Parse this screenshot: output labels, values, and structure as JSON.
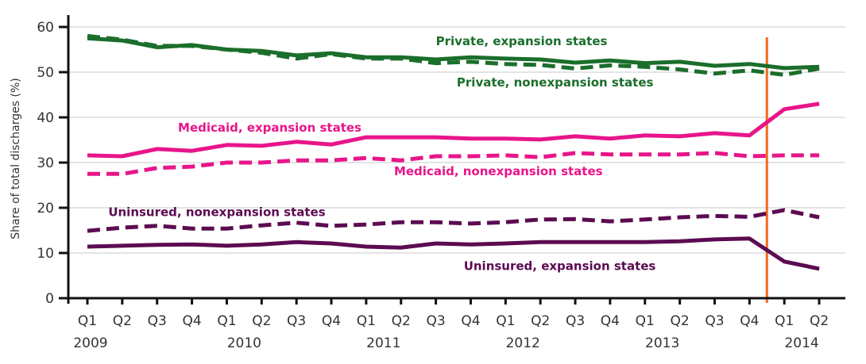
{
  "chart_data": {
    "type": "line",
    "title": "",
    "xlabel": "",
    "ylabel": "Share of total discharges (%)",
    "ylim": [
      0,
      60
    ],
    "yticks": [
      0,
      10,
      20,
      30,
      40,
      50,
      60
    ],
    "grid": "horizontal",
    "categories": [
      "Q1",
      "Q2",
      "Q3",
      "Q4",
      "Q1",
      "Q2",
      "Q3",
      "Q4",
      "Q1",
      "Q2",
      "Q3",
      "Q4",
      "Q1",
      "Q2",
      "Q3",
      "Q4",
      "Q1",
      "Q2",
      "Q3",
      "Q4",
      "Q1",
      "Q2"
    ],
    "year_labels": [
      {
        "label": "2009",
        "at_index": 0
      },
      {
        "label": "2010",
        "at_index": 4.5
      },
      {
        "label": "2011",
        "at_index": 8.5
      },
      {
        "label": "2012",
        "at_index": 12.5
      },
      {
        "label": "2013",
        "at_index": 16.5
      },
      {
        "label": "2014",
        "at_index": 20.5
      }
    ],
    "annotation": {
      "type": "vertical-line",
      "between_index": [
        19,
        20
      ],
      "position": 19.5,
      "color": "#f26b1d"
    },
    "series": [
      {
        "name": "Private, expansion states",
        "color": "#1b6e2b",
        "dash": false,
        "values": [
          57.5,
          57.0,
          55.5,
          56.0,
          55.0,
          54.7,
          53.7,
          54.2,
          53.3,
          53.3,
          52.8,
          53.3,
          53.0,
          52.8,
          52.1,
          52.6,
          52.0,
          52.3,
          51.4,
          51.8,
          50.9,
          51.2
        ],
        "label_anchor": [
          10.0,
          56.0
        ]
      },
      {
        "name": "Private, nonexpansion states",
        "color": "#1b6e2b",
        "dash": true,
        "values": [
          58.0,
          57.2,
          55.8,
          55.8,
          55.0,
          54.3,
          53.0,
          54.0,
          53.0,
          53.0,
          52.0,
          52.3,
          51.8,
          51.6,
          50.8,
          51.5,
          51.2,
          50.6,
          49.7,
          50.4,
          49.4,
          50.8
        ],
        "label_anchor": [
          10.6,
          46.8
        ]
      },
      {
        "name": "Medicaid, expansion states",
        "color": "#e8158a",
        "dash": false,
        "values": [
          31.6,
          31.4,
          33.0,
          32.6,
          33.9,
          33.7,
          34.6,
          34.0,
          35.6,
          35.6,
          35.6,
          35.3,
          35.3,
          35.1,
          35.8,
          35.3,
          36.0,
          35.8,
          36.5,
          36.0,
          41.8,
          43.0
        ],
        "label_anchor": [
          2.6,
          36.8
        ]
      },
      {
        "name": "Medicaid, nonexpansion states",
        "color": "#e8158a",
        "dash": true,
        "values": [
          27.5,
          27.5,
          28.8,
          29.1,
          30.0,
          30.0,
          30.5,
          30.5,
          31.0,
          30.5,
          31.4,
          31.4,
          31.6,
          31.2,
          32.1,
          31.8,
          31.8,
          31.8,
          32.1,
          31.4,
          31.6,
          31.6
        ],
        "label_anchor": [
          8.8,
          27.2
        ]
      },
      {
        "name": "Uninsured, nonexpansion states",
        "color": "#5c0b52",
        "dash": true,
        "values": [
          14.9,
          15.6,
          16.0,
          15.4,
          15.4,
          16.1,
          16.7,
          16.0,
          16.3,
          16.8,
          16.8,
          16.5,
          16.8,
          17.4,
          17.5,
          17.0,
          17.4,
          17.9,
          18.2,
          18.0,
          19.5,
          17.9
        ],
        "label_anchor": [
          0.6,
          18.2
        ]
      },
      {
        "name": "Uninsured, expansion states",
        "color": "#5c0b52",
        "dash": false,
        "values": [
          11.4,
          11.6,
          11.8,
          11.9,
          11.6,
          11.9,
          12.4,
          12.1,
          11.4,
          11.2,
          12.1,
          11.9,
          12.1,
          12.4,
          12.4,
          12.4,
          12.4,
          12.6,
          13.0,
          13.2,
          8.1,
          6.5
        ],
        "label_anchor": [
          10.8,
          6.2
        ]
      }
    ]
  }
}
